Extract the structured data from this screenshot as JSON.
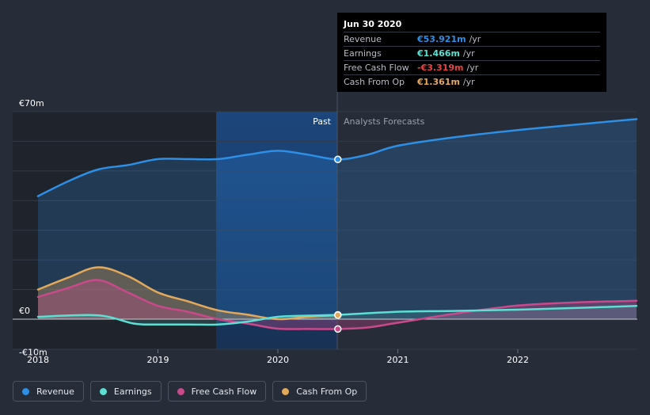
{
  "chart_data": {
    "type": "line",
    "currency_unit": "€m",
    "y_axis": {
      "range": [
        -10,
        70
      ],
      "tick_labels": [
        "€70m",
        "€0",
        "-€10m"
      ],
      "tick_values": [
        70,
        0,
        -10
      ]
    },
    "x_axis": {
      "tick_labels": [
        "2018",
        "2019",
        "2020",
        "2021",
        "2022"
      ],
      "tick_values": [
        2018,
        2019,
        2020,
        2021,
        2022
      ],
      "range": [
        2017.8,
        2022.99
      ]
    },
    "divider": {
      "x": 2020.5,
      "past_label": "Past",
      "forecast_label": "Analysts Forecasts"
    },
    "series": [
      {
        "name": "Revenue",
        "color": "#2d8fe6",
        "x": [
          2018.0,
          2018.25,
          2018.5,
          2018.75,
          2019.0,
          2019.25,
          2019.5,
          2019.75,
          2020.0,
          2020.25,
          2020.5,
          2020.75,
          2021.0,
          2021.5,
          2022.0,
          2022.5,
          2022.99
        ],
        "values": [
          41.5,
          46.5,
          50.5,
          52.0,
          54.0,
          54.0,
          54.0,
          55.5,
          56.8,
          55.5,
          53.9,
          55.5,
          58.5,
          61.5,
          63.8,
          65.7,
          67.5
        ]
      },
      {
        "name": "Earnings",
        "color": "#5ce0d4",
        "x": [
          2018.0,
          2018.5,
          2018.8,
          2019.0,
          2019.25,
          2019.5,
          2019.75,
          2020.0,
          2020.25,
          2020.5,
          2021.0,
          2021.5,
          2022.0,
          2022.5,
          2022.99
        ],
        "values": [
          0.8,
          1.3,
          -1.5,
          -1.8,
          -1.8,
          -1.8,
          -0.8,
          0.8,
          1.2,
          1.466,
          2.5,
          2.8,
          3.2,
          3.8,
          4.5
        ]
      },
      {
        "name": "Free Cash Flow",
        "color": "#c94a8b",
        "x": [
          2018.0,
          2018.25,
          2018.5,
          2018.75,
          2019.0,
          2019.25,
          2019.5,
          2019.75,
          2020.0,
          2020.25,
          2020.5,
          2020.75,
          2021.0,
          2021.5,
          2022.0,
          2022.5,
          2022.99
        ],
        "values": [
          7.5,
          10.5,
          13.2,
          9.0,
          4.5,
          2.5,
          0.0,
          -1.5,
          -3.2,
          -3.3,
          -3.319,
          -2.8,
          -1.2,
          2.0,
          4.6,
          5.7,
          6.2
        ]
      },
      {
        "name": "Cash From Op",
        "color": "#e3a95b",
        "x": [
          2018.0,
          2018.25,
          2018.5,
          2018.75,
          2019.0,
          2019.25,
          2019.5,
          2019.75,
          2020.0,
          2020.25,
          2020.5
        ],
        "values": [
          10.0,
          14.0,
          17.5,
          14.5,
          9.0,
          6.0,
          3.0,
          1.5,
          0.0,
          0.8,
          1.361
        ]
      }
    ]
  },
  "tooltip": {
    "date": "Jun 30 2020",
    "rows": [
      {
        "label": "Revenue",
        "value": "€53.921m",
        "unit": "/yr",
        "color": "#2d8fe6"
      },
      {
        "label": "Earnings",
        "value": "€1.466m",
        "unit": "/yr",
        "color": "#5ce0d4"
      },
      {
        "label": "Free Cash Flow",
        "value": "-€3.319m",
        "unit": "/yr",
        "color": "#e64343"
      },
      {
        "label": "Cash From Op",
        "value": "€1.361m",
        "unit": "/yr",
        "color": "#e3a95b"
      }
    ]
  },
  "legend": [
    {
      "label": "Revenue",
      "color": "#2d8fe6"
    },
    {
      "label": "Earnings",
      "color": "#5ce0d4"
    },
    {
      "label": "Free Cash Flow",
      "color": "#c94a8b"
    },
    {
      "label": "Cash From Op",
      "color": "#e3a95b"
    }
  ]
}
